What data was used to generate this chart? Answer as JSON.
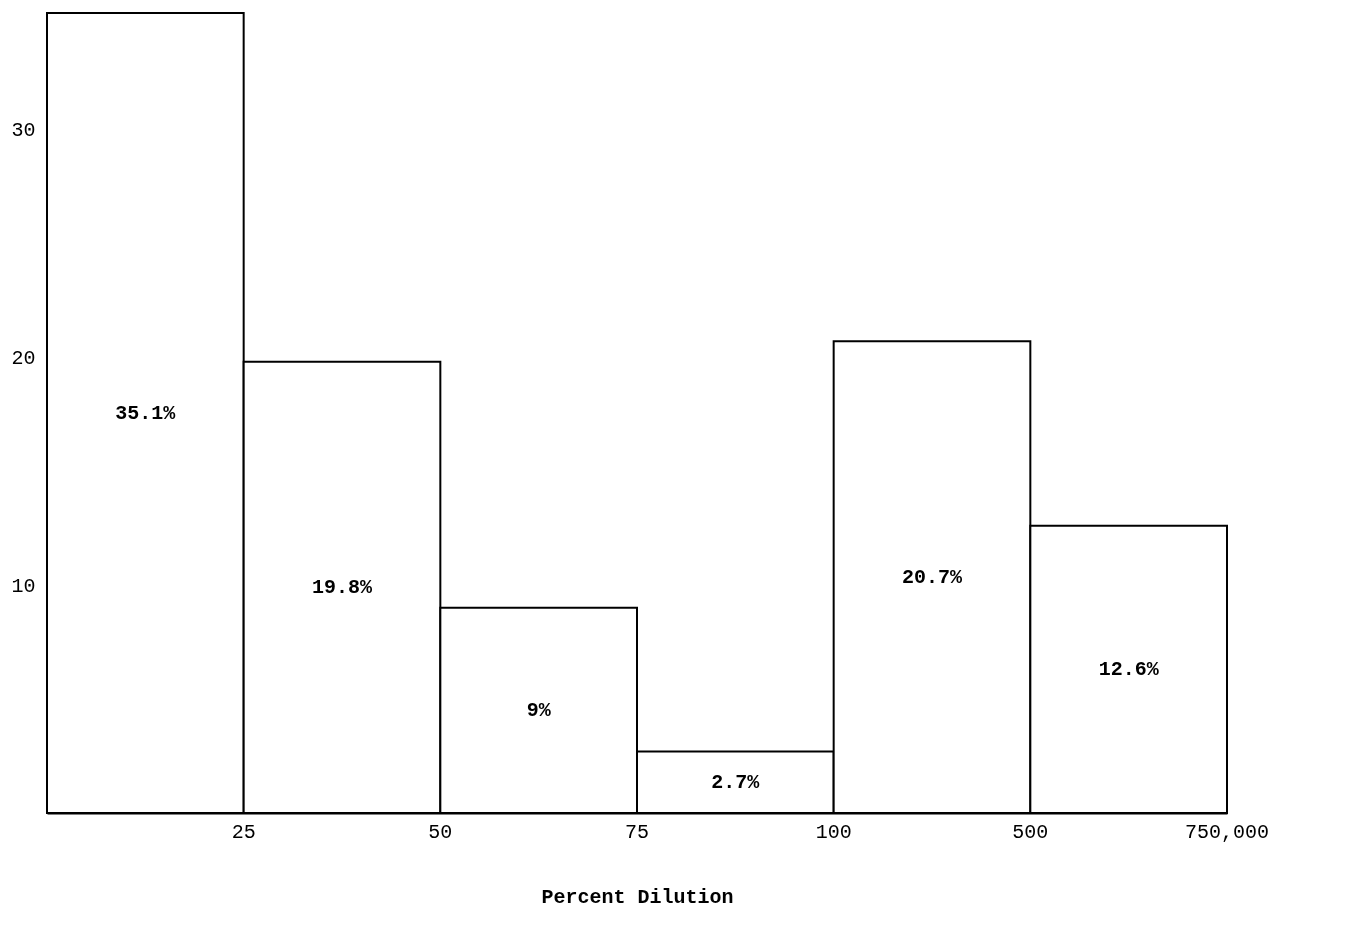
{
  "chart_data": {
    "type": "bar",
    "xlabel": "Percent Dilution",
    "categories": [
      "25",
      "50",
      "75",
      "100",
      "500",
      "750,000"
    ],
    "values": [
      35.1,
      19.8,
      9,
      2.7,
      20.7,
      12.6
    ],
    "value_labels": [
      "35.1%",
      "19.8%",
      "9%",
      "2.7%",
      "20.7%",
      "12.6%"
    ],
    "color": "#ffffff",
    "ylim": [
      0,
      35.1
    ],
    "yticks": [
      10,
      20,
      30
    ]
  }
}
